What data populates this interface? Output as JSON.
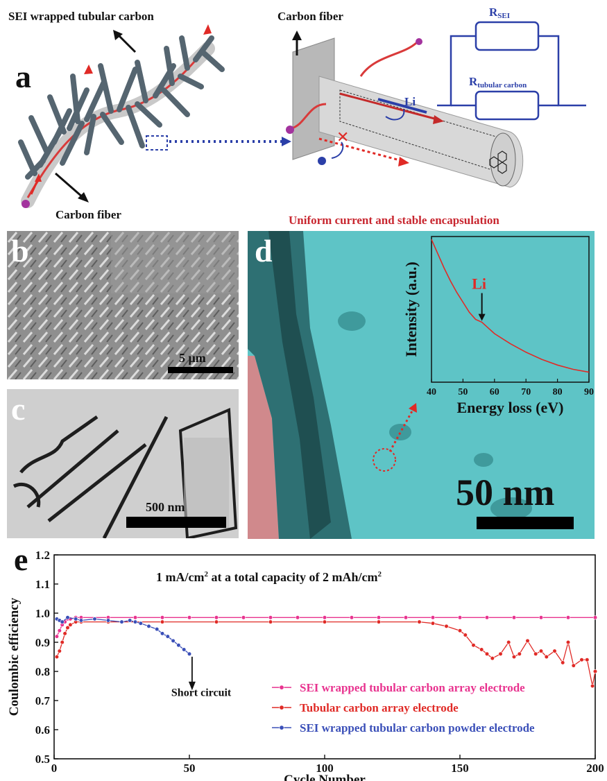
{
  "panel_a": {
    "label": "a",
    "sei_label": "SEI wrapped tubular carbon",
    "carbon_fiber_left": "Carbon fiber",
    "carbon_fiber_right": "Carbon fiber",
    "li_label": "Li",
    "circuit": {
      "r_sei_main": "R",
      "r_sei_sub": "SEI",
      "r_tc_main": "R",
      "r_tc_sub": "tubular carbon"
    }
  },
  "panel_b": {
    "label": "b",
    "scale": "5 μm"
  },
  "panel_c": {
    "label": "c",
    "scale": "500 nm"
  },
  "panel_d": {
    "label": "d",
    "title": "Uniform current and stable encapsulation",
    "scale": "50 nm",
    "inset": {
      "ylabel": "Intensity (a.u.)",
      "xlabel": "Energy loss (eV)",
      "annotation": "Li",
      "xticks": [
        "40",
        "50",
        "60",
        "70",
        "80",
        "90"
      ]
    }
  },
  "panel_e": {
    "label": "e",
    "title_prefix": "1 mA/cm",
    "title_sup1": "2",
    "title_middle": " at a total capacity of 2 mAh/cm",
    "title_sup2": "2",
    "short_circuit": "Short circuit",
    "colors": {
      "pink": "#e8338f",
      "red": "#e02a26",
      "blue": "#3a4fb8"
    }
  },
  "chart_data": [
    {
      "type": "line",
      "panel": "d-inset",
      "xlabel": "Energy loss (eV)",
      "ylabel": "Intensity (a.u.)",
      "xlim": [
        40,
        90
      ],
      "annotation": {
        "text": "Li",
        "x": 56
      },
      "series": [
        {
          "x": [
            40,
            42,
            44,
            46,
            48,
            50,
            52,
            54,
            56,
            58,
            60,
            65,
            70,
            75,
            80,
            85,
            90
          ],
          "y": [
            1.0,
            0.9,
            0.8,
            0.71,
            0.63,
            0.56,
            0.49,
            0.44,
            0.42,
            0.38,
            0.34,
            0.27,
            0.21,
            0.16,
            0.12,
            0.09,
            0.07
          ]
        }
      ]
    },
    {
      "type": "line",
      "panel": "e",
      "xlabel": "Cycle Number",
      "ylabel": "Coulombic efficiency",
      "xlim": [
        0,
        200
      ],
      "ylim": [
        0.5,
        1.2
      ],
      "xticks": [
        "0",
        "50",
        "100",
        "150",
        "200"
      ],
      "yticks": [
        "0.5",
        "0.6",
        "0.7",
        "0.8",
        "0.9",
        "1.0",
        "1.1",
        "1.2"
      ],
      "legend": "bottom-right",
      "series": [
        {
          "name": "SEI wrapped tubular carbon array electrode",
          "color": "#e8338f",
          "x": [
            1,
            2,
            3,
            4,
            5,
            6,
            8,
            10,
            20,
            30,
            40,
            50,
            60,
            70,
            80,
            90,
            100,
            110,
            120,
            130,
            140,
            150,
            160,
            170,
            180,
            190,
            200
          ],
          "y": [
            0.92,
            0.94,
            0.96,
            0.97,
            0.98,
            0.98,
            0.985,
            0.985,
            0.985,
            0.985,
            0.985,
            0.985,
            0.985,
            0.985,
            0.985,
            0.985,
            0.985,
            0.985,
            0.985,
            0.985,
            0.985,
            0.985,
            0.985,
            0.985,
            0.985,
            0.985,
            0.985
          ]
        },
        {
          "name": "Tubular carbon array electrode",
          "color": "#e02a26",
          "x": [
            1,
            2,
            3,
            4,
            5,
            6,
            8,
            10,
            20,
            40,
            60,
            80,
            100,
            120,
            135,
            140,
            145,
            150,
            152,
            155,
            158,
            160,
            162,
            165,
            168,
            170,
            172,
            175,
            178,
            180,
            182,
            185,
            188,
            190,
            192,
            195,
            197,
            199,
            200
          ],
          "y": [
            0.85,
            0.87,
            0.9,
            0.93,
            0.95,
            0.96,
            0.97,
            0.97,
            0.97,
            0.97,
            0.97,
            0.97,
            0.97,
            0.97,
            0.97,
            0.965,
            0.955,
            0.94,
            0.925,
            0.89,
            0.875,
            0.86,
            0.845,
            0.86,
            0.9,
            0.85,
            0.86,
            0.905,
            0.86,
            0.87,
            0.85,
            0.87,
            0.83,
            0.9,
            0.82,
            0.84,
            0.84,
            0.75,
            0.8
          ]
        },
        {
          "name": "SEI wrapped tubular carbon powder electrode",
          "color": "#3a4fb8",
          "x": [
            1,
            2,
            3,
            5,
            8,
            10,
            15,
            20,
            25,
            28,
            30,
            32,
            35,
            38,
            40,
            42,
            44,
            46,
            48,
            50
          ],
          "y": [
            0.98,
            0.975,
            0.97,
            0.985,
            0.98,
            0.975,
            0.98,
            0.975,
            0.97,
            0.975,
            0.97,
            0.965,
            0.955,
            0.945,
            0.93,
            0.92,
            0.905,
            0.89,
            0.875,
            0.86
          ]
        }
      ]
    }
  ]
}
